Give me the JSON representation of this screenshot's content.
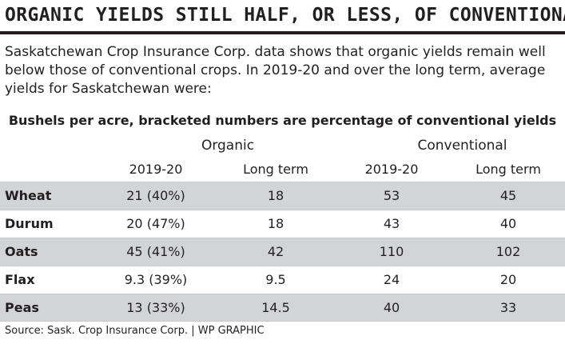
{
  "title": "ORGANIC YIELDS STILL HALF, OR LESS, OF CONVENTIONAL",
  "intro": "Saskatchewan Crop Insurance Corp. data shows that organic yields remain well below those of conventional crops. In 2019-20 and over the long term, average yields for Saskatchewan were:",
  "subhead": "Bushels per acre, bracketed numbers are percentage of conventional yields",
  "source": "Source: Sask. Crop Insurance Corp. | WP GRAPHIC",
  "colors": {
    "text": "#231f20",
    "row_shade": "#d3d4d6",
    "rule": "#231f20"
  },
  "chart_data": {
    "type": "table",
    "groups": [
      "Organic",
      "Conventional"
    ],
    "columns": [
      "2019-20",
      "Long term",
      "2019-20",
      "Long term"
    ],
    "rows": [
      {
        "crop": "Wheat",
        "values": [
          "21 (40%)",
          "18",
          "53",
          "45"
        ],
        "shaded": true
      },
      {
        "crop": "Durum",
        "values": [
          "20 (47%)",
          "18",
          "43",
          "40"
        ],
        "shaded": false
      },
      {
        "crop": "Oats",
        "values": [
          "45 (41%)",
          "42",
          "110",
          "102"
        ],
        "shaded": true
      },
      {
        "crop": "Flax",
        "values": [
          "9.3 (39%)",
          "9.5",
          "24",
          "20"
        ],
        "shaded": false
      },
      {
        "crop": "Peas",
        "values": [
          "13 (33%)",
          "14.5",
          "40",
          "33"
        ],
        "shaded": true
      }
    ]
  }
}
